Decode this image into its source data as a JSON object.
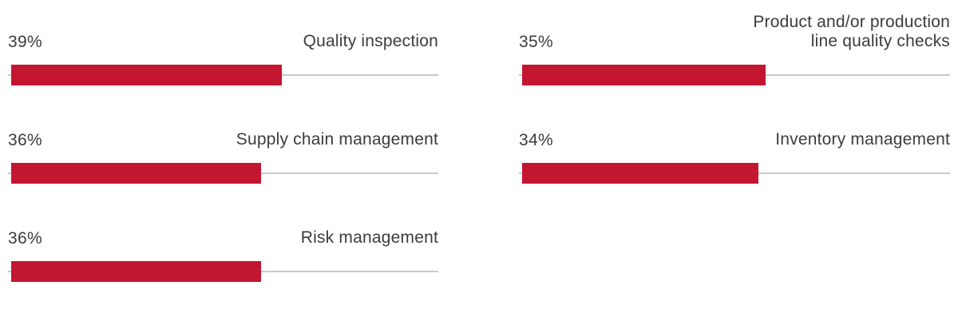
{
  "chart_data": {
    "type": "bar",
    "orientation": "horizontal",
    "title": "",
    "xlabel": "",
    "ylabel": "",
    "unit": "%",
    "xlim": [
      0,
      62
    ],
    "grid": false,
    "legend": "none",
    "bar_color": "#c31631",
    "track_color": "#c9c9c9",
    "text_color": "#3c3c3e",
    "columns": [
      {
        "name": "left",
        "items": [
          {
            "value": 39,
            "value_label": "39%",
            "label": "Quality inspection"
          },
          {
            "value": 36,
            "value_label": "36%",
            "label": "Supply chain management"
          },
          {
            "value": 36,
            "value_label": "36%",
            "label": "Risk management"
          }
        ]
      },
      {
        "name": "right",
        "items": [
          {
            "value": 35,
            "value_label": "35%",
            "label": "Product and/or production\nline quality checks"
          },
          {
            "value": 34,
            "value_label": "34%",
            "label": "Inventory management"
          }
        ]
      }
    ]
  }
}
